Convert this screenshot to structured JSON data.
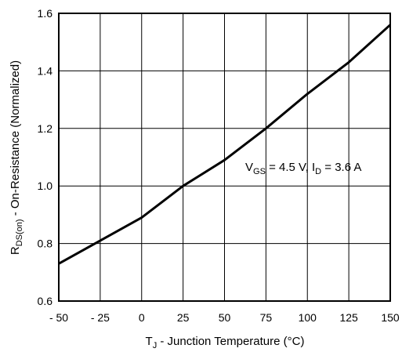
{
  "chart_data": {
    "type": "line",
    "xlabel": {
      "main": "T",
      "sub": "J",
      "rest": " - Junction Temperature (°C)"
    },
    "ylabel": {
      "main": "R",
      "sub": "DS(on)",
      "rest": " - On-Resistance (Normalized)"
    },
    "annotation": {
      "p1": "V",
      "s1": "GS",
      "p2": " = 4.5 V, I",
      "s2": "D",
      "p3": " = 3.6 A"
    },
    "xlim": [
      -50,
      150
    ],
    "ylim": [
      0.6,
      1.6
    ],
    "x_ticks": [
      -50,
      -25,
      0,
      25,
      50,
      75,
      100,
      125,
      150
    ],
    "x_tick_labels": [
      "- 50",
      "- 25",
      "0",
      "25",
      "50",
      "75",
      "100",
      "125",
      "150"
    ],
    "y_ticks": [
      0.6,
      0.8,
      1.0,
      1.2,
      1.4,
      1.6
    ],
    "y_tick_labels": [
      "0.6",
      "0.8",
      "1.0",
      "1.2",
      "1.4",
      "1.6"
    ],
    "grid": true,
    "series": [
      {
        "color": "#000000",
        "x": [
          -50,
          -25,
          0,
          25,
          50,
          75,
          100,
          125,
          150
        ],
        "y": [
          0.73,
          0.81,
          0.89,
          1.0,
          1.09,
          1.2,
          1.32,
          1.43,
          1.56
        ]
      }
    ]
  }
}
